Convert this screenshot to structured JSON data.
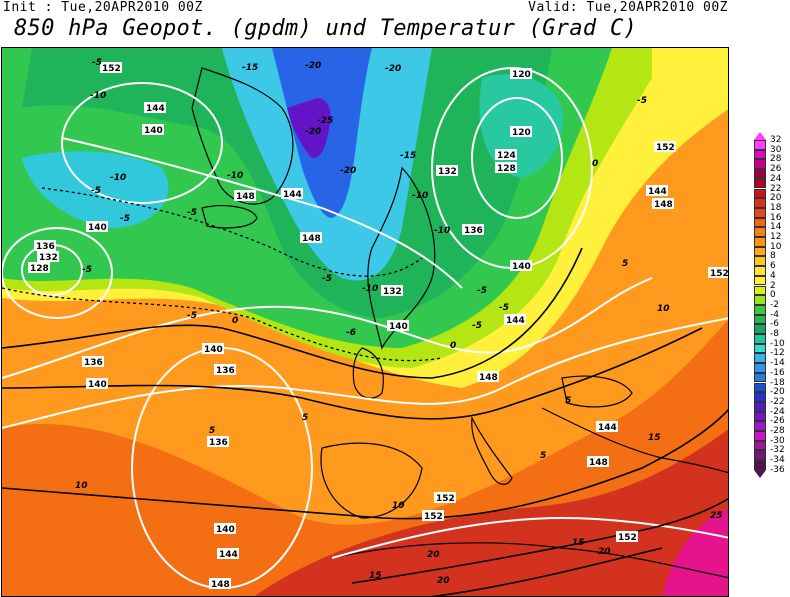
{
  "header": {
    "init": "Init : Tue,20APR2010 00Z",
    "valid": "Valid: Tue,20APR2010 00Z",
    "title": "850 hPa Geopot. (gpdm) und Temperatur (Grad C)"
  },
  "colorbar": {
    "labels": [
      "32",
      "30",
      "28",
      "26",
      "24",
      "22",
      "20",
      "18",
      "16",
      "14",
      "12",
      "10",
      "8",
      "6",
      "4",
      "2",
      "0",
      "-2",
      "-4",
      "-6",
      "-8",
      "-10",
      "-12",
      "-14",
      "-16",
      "-18",
      "-20",
      "-22",
      "-24",
      "-26",
      "-28",
      "-30",
      "-32",
      "-34",
      "-36"
    ],
    "colors": [
      "#ff3cff",
      "#e600c8",
      "#c8008c",
      "#a0003c",
      "#b4001e",
      "#c8141e",
      "#dc321e",
      "#e6461e",
      "#f06414",
      "#f58214",
      "#fa9614",
      "#ffaa14",
      "#ffc81e",
      "#ffe632",
      "#fff03c",
      "#d7f014",
      "#96e61e",
      "#3cc83c",
      "#28b450",
      "#20a060",
      "#20c8a0",
      "#32dcd2",
      "#32b4f0",
      "#3296f0",
      "#2878e6",
      "#1e50d2",
      "#2832c8",
      "#501ec8",
      "#7814c8",
      "#a014c8",
      "#c814c8",
      "#a014a0",
      "#781478",
      "#501450"
    ]
  },
  "map_labels": {
    "geopotential": [
      {
        "text": "152"
      },
      {
        "text": "144"
      },
      {
        "text": "140"
      },
      {
        "text": "144"
      },
      {
        "text": "148"
      },
      {
        "text": "144"
      },
      {
        "text": "148"
      },
      {
        "text": "136"
      },
      {
        "text": "132"
      },
      {
        "text": "128"
      },
      {
        "text": "140"
      },
      {
        "text": "136"
      },
      {
        "text": "140"
      },
      {
        "text": "136"
      },
      {
        "text": "132"
      },
      {
        "text": "128"
      },
      {
        "text": "124"
      },
      {
        "text": "120"
      },
      {
        "text": "120"
      },
      {
        "text": "132"
      },
      {
        "text": "136"
      },
      {
        "text": "140"
      },
      {
        "text": "144"
      },
      {
        "text": "144"
      },
      {
        "text": "148"
      },
      {
        "text": "152"
      },
      {
        "text": "152"
      },
      {
        "text": "148"
      },
      {
        "text": "148"
      },
      {
        "text": "144"
      },
      {
        "text": "140"
      },
      {
        "text": "136"
      },
      {
        "text": "140"
      },
      {
        "text": "144"
      },
      {
        "text": "148"
      },
      {
        "text": "152"
      },
      {
        "text": "152"
      },
      {
        "text": "152"
      },
      {
        "text": "132"
      },
      {
        "text": "140"
      },
      {
        "text": "144"
      }
    ],
    "temperature": [
      {
        "text": "-5"
      },
      {
        "text": "-10"
      },
      {
        "text": "-15"
      },
      {
        "text": "-20"
      },
      {
        "text": "-25"
      },
      {
        "text": "-20"
      },
      {
        "text": "-10"
      },
      {
        "text": "-5"
      },
      {
        "text": "-10"
      },
      {
        "text": "-5"
      },
      {
        "text": "-5"
      },
      {
        "text": "-10"
      },
      {
        "text": "-5"
      },
      {
        "text": "-5"
      },
      {
        "text": "0"
      },
      {
        "text": "-5"
      },
      {
        "text": "-15"
      },
      {
        "text": "-10"
      },
      {
        "text": "-10"
      },
      {
        "text": "-5"
      },
      {
        "text": "-5"
      },
      {
        "text": "-5"
      },
      {
        "text": "-10"
      },
      {
        "text": "-6"
      },
      {
        "text": "0"
      },
      {
        "text": "5"
      },
      {
        "text": "5"
      },
      {
        "text": "5"
      },
      {
        "text": "5"
      },
      {
        "text": "10"
      },
      {
        "text": "10"
      },
      {
        "text": "10"
      },
      {
        "text": "15"
      },
      {
        "text": "15"
      },
      {
        "text": "15"
      },
      {
        "text": "20"
      },
      {
        "text": "20"
      },
      {
        "text": "25"
      },
      {
        "text": "20"
      },
      {
        "text": "5"
      },
      {
        "text": "0"
      },
      {
        "text": "-20"
      },
      {
        "text": "-5"
      }
    ]
  }
}
